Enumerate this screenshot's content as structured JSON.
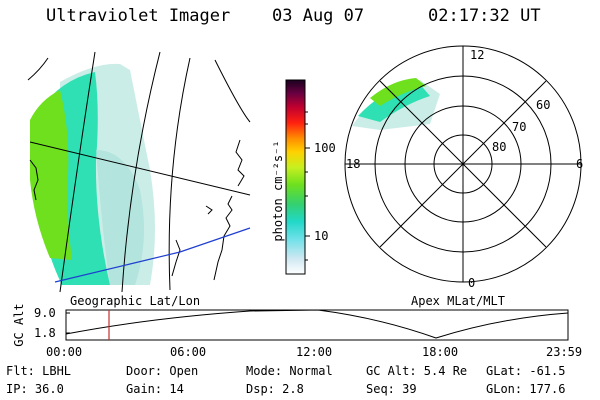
{
  "header": {
    "title": "Ultraviolet Imager",
    "date": "03 Aug 07",
    "time": "02:17:32 UT"
  },
  "colorbar": {
    "unit_label": "photon cm⁻²s⁻¹",
    "tick_100": "100",
    "tick_10": "10"
  },
  "polar": {
    "label_12": "12",
    "label_6": "6",
    "label_18": "18",
    "label_0": "0",
    "lat_60": "60",
    "lat_70": "70",
    "lat_80": "80"
  },
  "projections": {
    "left": "Geographic Lat/Lon",
    "right": "Apex MLat/MLT"
  },
  "orbit": {
    "axis_label": "GC Alt",
    "y_max": "9.0",
    "y_min": "1.8",
    "ticks": [
      "00:00",
      "06:00",
      "12:00",
      "18:00",
      "23:59"
    ]
  },
  "info": {
    "filter": "Flt: LBHL",
    "door": "Door: Open",
    "mode": "Mode: Normal",
    "gc_alt": "GC Alt: 5.4 Re",
    "glat": "GLat: -61.5",
    "ip": "IP: 36.0",
    "gain": "Gain: 14",
    "dsp": "Dsp:    2.8",
    "seq": "Seq: 39",
    "glon": "GLon: 177.6"
  },
  "colors": {
    "aurora_green": "#6ee01e",
    "aurora_cyan": "#2fe0b4",
    "aurora_pale": "#b8e8dc",
    "coast_blue": "#1f3fd0",
    "time_marker": "#c0302a"
  }
}
